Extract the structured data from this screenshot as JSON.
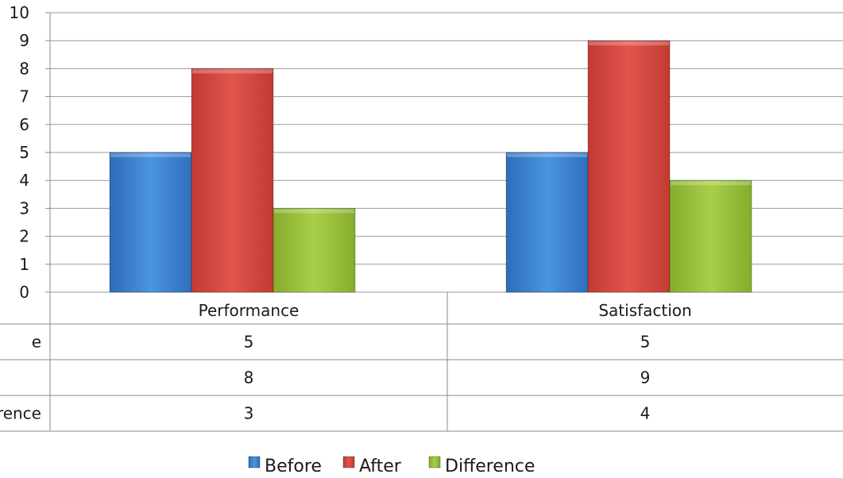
{
  "chart_data": {
    "type": "bar",
    "categories": [
      "Performance",
      "Satisfaction"
    ],
    "series": [
      {
        "name": "Before",
        "values": [
          5,
          5
        ],
        "color": "#3f86d6"
      },
      {
        "name": "After",
        "values": [
          8,
          9
        ],
        "color": "#d94b43"
      },
      {
        "name": "Difference",
        "values": [
          3,
          4
        ],
        "color": "#9cc33b"
      }
    ],
    "ylim": [
      0,
      10
    ],
    "y_ticks": [
      "0",
      "1",
      "2",
      "3",
      "4",
      "5",
      "6",
      "7",
      "8",
      "9",
      "10"
    ],
    "table_row_labels": [
      "e",
      "",
      "rence"
    ],
    "grid": true,
    "legend_position": "bottom",
    "data_table": true
  }
}
